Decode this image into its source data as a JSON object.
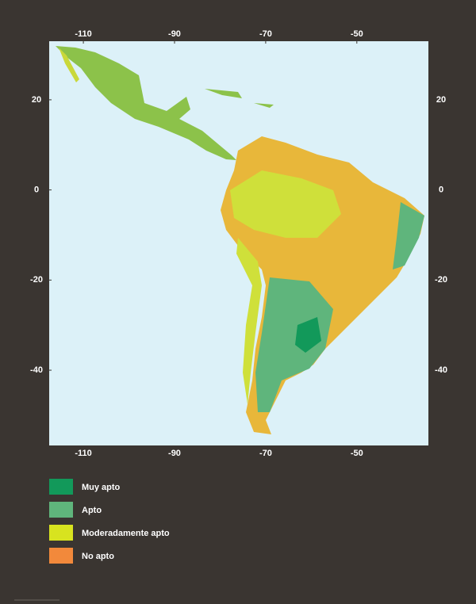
{
  "map": {
    "xlim": [
      -117.5,
      -34.3
    ],
    "ylim": [
      33,
      -56.7
    ],
    "xticks": [
      -110,
      -90,
      -70,
      -50
    ],
    "yticks": [
      20,
      0,
      -20,
      -40
    ],
    "legend": [
      {
        "label": "Muy apto",
        "color": "#12995a"
      },
      {
        "label": "Apto",
        "color": "#5fb57c"
      },
      {
        "label": "Moderadamente apto",
        "color": "#d8e31f"
      },
      {
        "label": "No apto",
        "color": "#f2893b"
      }
    ]
  }
}
